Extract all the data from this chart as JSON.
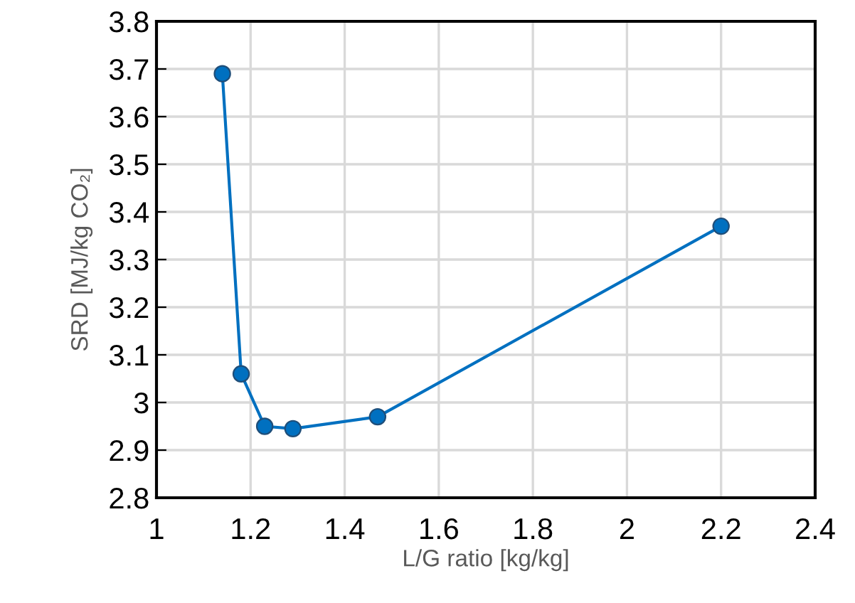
{
  "chart_data": {
    "type": "line",
    "xlabel": "L/G ratio [kg/kg]",
    "ylabel": "SRD [MJ/kg CO₂]",
    "x": [
      1.14,
      1.18,
      1.23,
      1.29,
      1.47,
      2.2
    ],
    "series": [
      {
        "color": "#0070c0",
        "values": [
          3.69,
          3.06,
          2.95,
          2.945,
          2.97,
          3.37
        ]
      }
    ],
    "marker": "circle",
    "line_style": "solid",
    "grid": true,
    "xlim": [
      1,
      2.4
    ],
    "xticks": [
      1,
      1.2,
      1.4,
      1.6,
      1.8,
      2,
      2.2,
      2.4
    ],
    "ylim": [
      2.8,
      3.8
    ],
    "yticks": [
      2.8,
      2.9,
      3,
      3.1,
      3.2,
      3.3,
      3.4,
      3.5,
      3.6,
      3.7,
      3.8
    ]
  }
}
